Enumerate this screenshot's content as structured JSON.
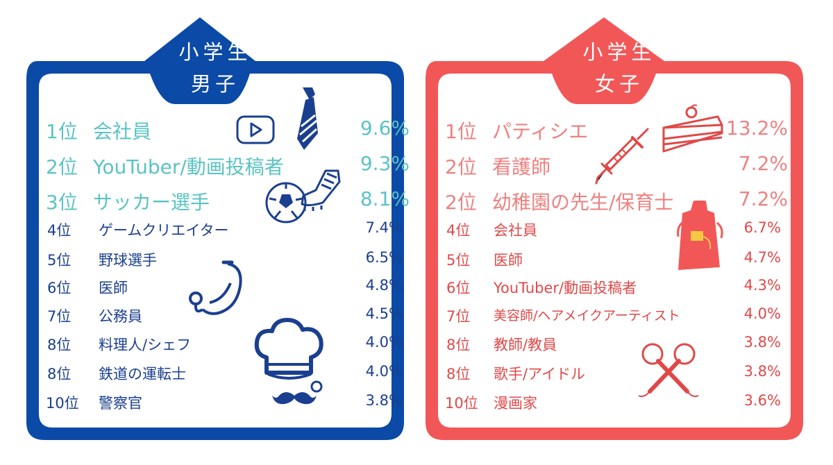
{
  "boys": {
    "title_line1": "小学生",
    "title_line2": "男子",
    "colors": {
      "frame": "#0b4aa6",
      "top_text": "#5bc3c4",
      "rest_text": "#1a3f8f"
    },
    "rows": [
      {
        "rank": "1位",
        "job": "会社員",
        "pct": "9.6%"
      },
      {
        "rank": "2位",
        "job": "YouTuber/動画投稿者",
        "pct": "9.3%"
      },
      {
        "rank": "3位",
        "job": "サッカー選手",
        "pct": "8.1%"
      },
      {
        "rank": "4位",
        "job": "ゲームクリエイター",
        "pct": "7.4%"
      },
      {
        "rank": "5位",
        "job": "野球選手",
        "pct": "6.5%"
      },
      {
        "rank": "6位",
        "job": "医師",
        "pct": "4.8%"
      },
      {
        "rank": "7位",
        "job": "公務員",
        "pct": "4.5%"
      },
      {
        "rank": "8位",
        "job": "料理人/シェフ",
        "pct": "4.0%"
      },
      {
        "rank": "8位",
        "job": "鉄道の運転士",
        "pct": "4.0%"
      },
      {
        "rank": "10位",
        "job": "警察官",
        "pct": "3.8%"
      }
    ],
    "icons": [
      "play-button-icon",
      "necktie-icon",
      "soccer-ball-icon",
      "soccer-cleat-icon",
      "stethoscope-icon",
      "chef-hat-icon",
      "mustache-icon"
    ]
  },
  "girls": {
    "title_line1": "小学生",
    "title_line2": "女子",
    "colors": {
      "frame": "#f25757",
      "top_text": "#ef8080",
      "rest_text": "#e04848"
    },
    "rows": [
      {
        "rank": "1位",
        "job": "パティシエ",
        "pct": "13.2%"
      },
      {
        "rank": "2位",
        "job": "看護師",
        "pct": "7.2%"
      },
      {
        "rank": "2位",
        "job": "幼稚園の先生/保育士",
        "pct": "7.2%"
      },
      {
        "rank": "4位",
        "job": "会社員",
        "pct": "6.7%"
      },
      {
        "rank": "5位",
        "job": "医師",
        "pct": "4.7%"
      },
      {
        "rank": "6位",
        "job": "YouTuber/動画投稿者",
        "pct": "4.3%"
      },
      {
        "rank": "7位",
        "job": "美容師/ヘアメイクアーティスト",
        "pct": "4.0%"
      },
      {
        "rank": "8位",
        "job": "教師/教員",
        "pct": "3.8%"
      },
      {
        "rank": "8位",
        "job": "歌手/アイドル",
        "pct": "3.8%"
      },
      {
        "rank": "10位",
        "job": "漫画家",
        "pct": "3.6%"
      }
    ],
    "icons": [
      "cake-slice-icon",
      "syringe-icon",
      "apron-icon",
      "microphone-icon"
    ]
  }
}
